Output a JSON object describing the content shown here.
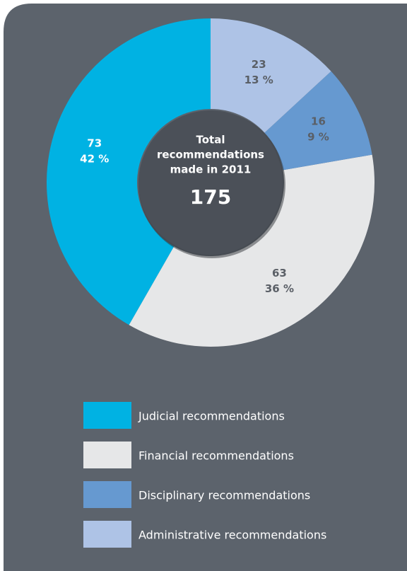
{
  "chart_data": {
    "type": "donut",
    "categories": [
      "Judicial recommendations",
      "Financial recommendations",
      "Disciplinary recommendations",
      "Administrative recommendations"
    ],
    "values": [
      73,
      63,
      16,
      23
    ],
    "percent_labels": [
      "42 %",
      "36 %",
      "9 %",
      "13 %"
    ],
    "colors": [
      "#00b2e3",
      "#e6e7e8",
      "#6699d0",
      "#aec3e6"
    ],
    "center_label": [
      "Total",
      "recommendations",
      "made in 2011"
    ],
    "total": 175,
    "legend": true
  }
}
